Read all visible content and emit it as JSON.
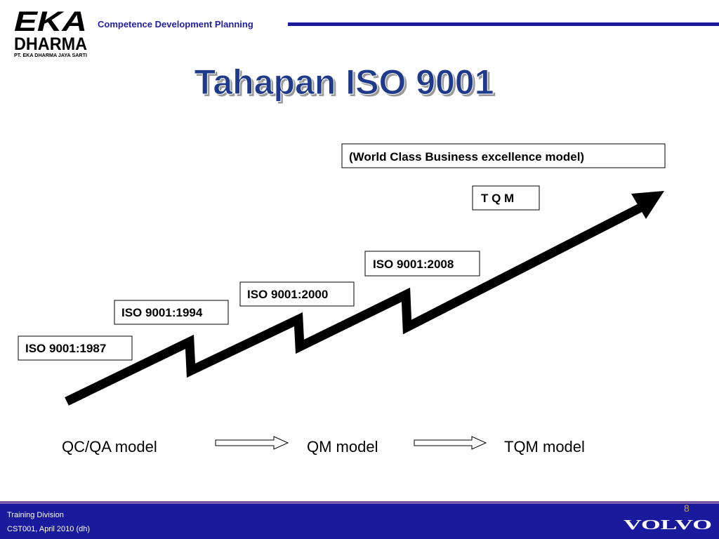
{
  "header": {
    "logo_top": "EKA",
    "logo_bottom": "DHARMA",
    "logo_company": "PT. EKA DHARMA JAYA SARTI",
    "section": "Competence Development Planning"
  },
  "title": "Tahapan ISO 9001",
  "stages": {
    "wcbe": "(World Class Business excellence model)",
    "tqm": "T Q M",
    "iso2008": "ISO 9001:2008",
    "iso2000": "ISO 9001:2000",
    "iso1994": "ISO 9001:1994",
    "iso1987": "ISO 9001:1987"
  },
  "models": [
    "QC/QA model",
    "QM model",
    "TQM model"
  ],
  "footer": {
    "division": "Training Division",
    "doc": "CST001, April 2010 (dh)",
    "page": "8",
    "brand": "VOLVO"
  }
}
